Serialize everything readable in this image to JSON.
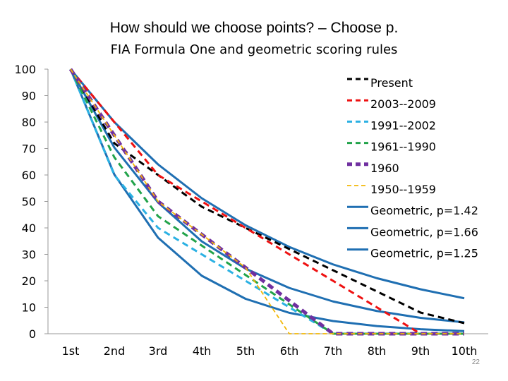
{
  "title": "How should we choose points? – Choose p.",
  "subtitle": "FIA Formula One and geometric scoring rules",
  "slide_number": "22",
  "chart_data": {
    "type": "line",
    "title": "FIA Formula One and geometric scoring rules",
    "xlabel": "",
    "ylabel": "",
    "ylim": [
      0,
      100
    ],
    "yticks": [
      "0",
      "10",
      "20",
      "30",
      "40",
      "50",
      "60",
      "70",
      "80",
      "90",
      "100"
    ],
    "categories": [
      "1st",
      "2nd",
      "3rd",
      "4th",
      "5th",
      "6th",
      "7th",
      "8th",
      "9th",
      "10th"
    ],
    "grid": false,
    "legend_position": "top-right",
    "series": [
      {
        "name": "Present",
        "color": "#000000",
        "dashed": true,
        "values": [
          100,
          72,
          60,
          48,
          40,
          32,
          24,
          16,
          8,
          4
        ]
      },
      {
        "name": "2003--2009",
        "color": "#ee1111",
        "dashed": true,
        "values": [
          100,
          80,
          60,
          50,
          40,
          30,
          20,
          10,
          0,
          0
        ]
      },
      {
        "name": "1991--2002",
        "color": "#2bb1e3",
        "dashed": true,
        "values": [
          100,
          60,
          40,
          30,
          20,
          10,
          0,
          0,
          0,
          0
        ]
      },
      {
        "name": "1961--1990",
        "color": "#22a34a",
        "dashed": true,
        "values": [
          100,
          66.7,
          44.4,
          33.3,
          22.2,
          11.1,
          0,
          0,
          0,
          0
        ]
      },
      {
        "name": "1960",
        "color": "#7030a0",
        "dashed": true,
        "thick": true,
        "values": [
          100,
          75,
          50,
          37.5,
          25,
          12.5,
          0,
          0,
          0,
          0
        ]
      },
      {
        "name": "1950--1959",
        "color": "#f2b705",
        "dashed": true,
        "thin": true,
        "values": [
          100,
          75,
          50,
          37.5,
          25,
          0,
          0,
          0,
          0,
          0
        ]
      },
      {
        "name": "Geometric, p=1.42",
        "color": "#1f6fb2",
        "dashed": false,
        "values": [
          100,
          70.4,
          49.6,
          34.9,
          24.6,
          17.3,
          12.2,
          8.6,
          6.0,
          4.3
        ]
      },
      {
        "name": "Geometric, p=1.66",
        "color": "#1f6fb2",
        "dashed": false,
        "values": [
          100,
          60.2,
          36.3,
          21.9,
          13.2,
          7.9,
          4.8,
          2.9,
          1.7,
          1.0
        ]
      },
      {
        "name": "Geometric, p=1.25",
        "color": "#1f6fb2",
        "dashed": false,
        "values": [
          100,
          80,
          64,
          51.2,
          41,
          32.8,
          26.2,
          21,
          16.8,
          13.4
        ]
      }
    ]
  }
}
